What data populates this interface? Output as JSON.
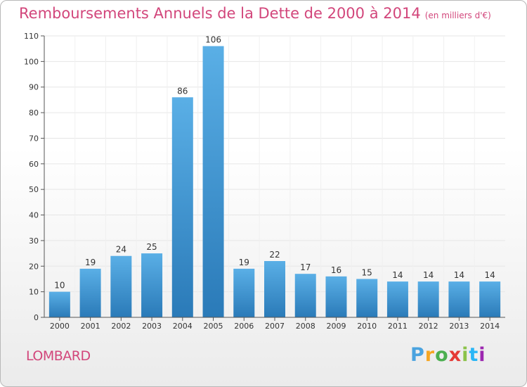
{
  "page": {
    "title": "Remboursements Annuels de la Dette de 2000 à 2014",
    "unit_note": "(en milliers d'€)",
    "commune": "LOMBARD",
    "logo": {
      "letters": [
        "P",
        "r",
        "o",
        "x",
        "i",
        "t",
        "i"
      ],
      "colors": [
        "#4aa3df",
        "#f5a623",
        "#4caf50",
        "#e53935",
        "#8bc34a",
        "#29b6f6",
        "#9c27b0"
      ]
    }
  },
  "chart_data": {
    "type": "bar",
    "title": "Remboursements Annuels de la Dette de 2000 à 2014",
    "categories": [
      "2000",
      "2001",
      "2002",
      "2003",
      "2004",
      "2005",
      "2006",
      "2007",
      "2008",
      "2009",
      "2010",
      "2011",
      "2012",
      "2013",
      "2014"
    ],
    "values": [
      10,
      19,
      24,
      25,
      86,
      106,
      19,
      22,
      17,
      16,
      15,
      14,
      14,
      14,
      14
    ],
    "ylim": [
      0,
      110
    ],
    "yticks": [
      0,
      10,
      20,
      30,
      40,
      50,
      60,
      70,
      80,
      90,
      100,
      110
    ],
    "grid": true,
    "colors": {
      "bar_top": "#5aafe6",
      "bar_bottom": "#2a7ab8",
      "title": "#d2467b",
      "grid": "#e6e6e6",
      "axis": "#555555"
    }
  }
}
